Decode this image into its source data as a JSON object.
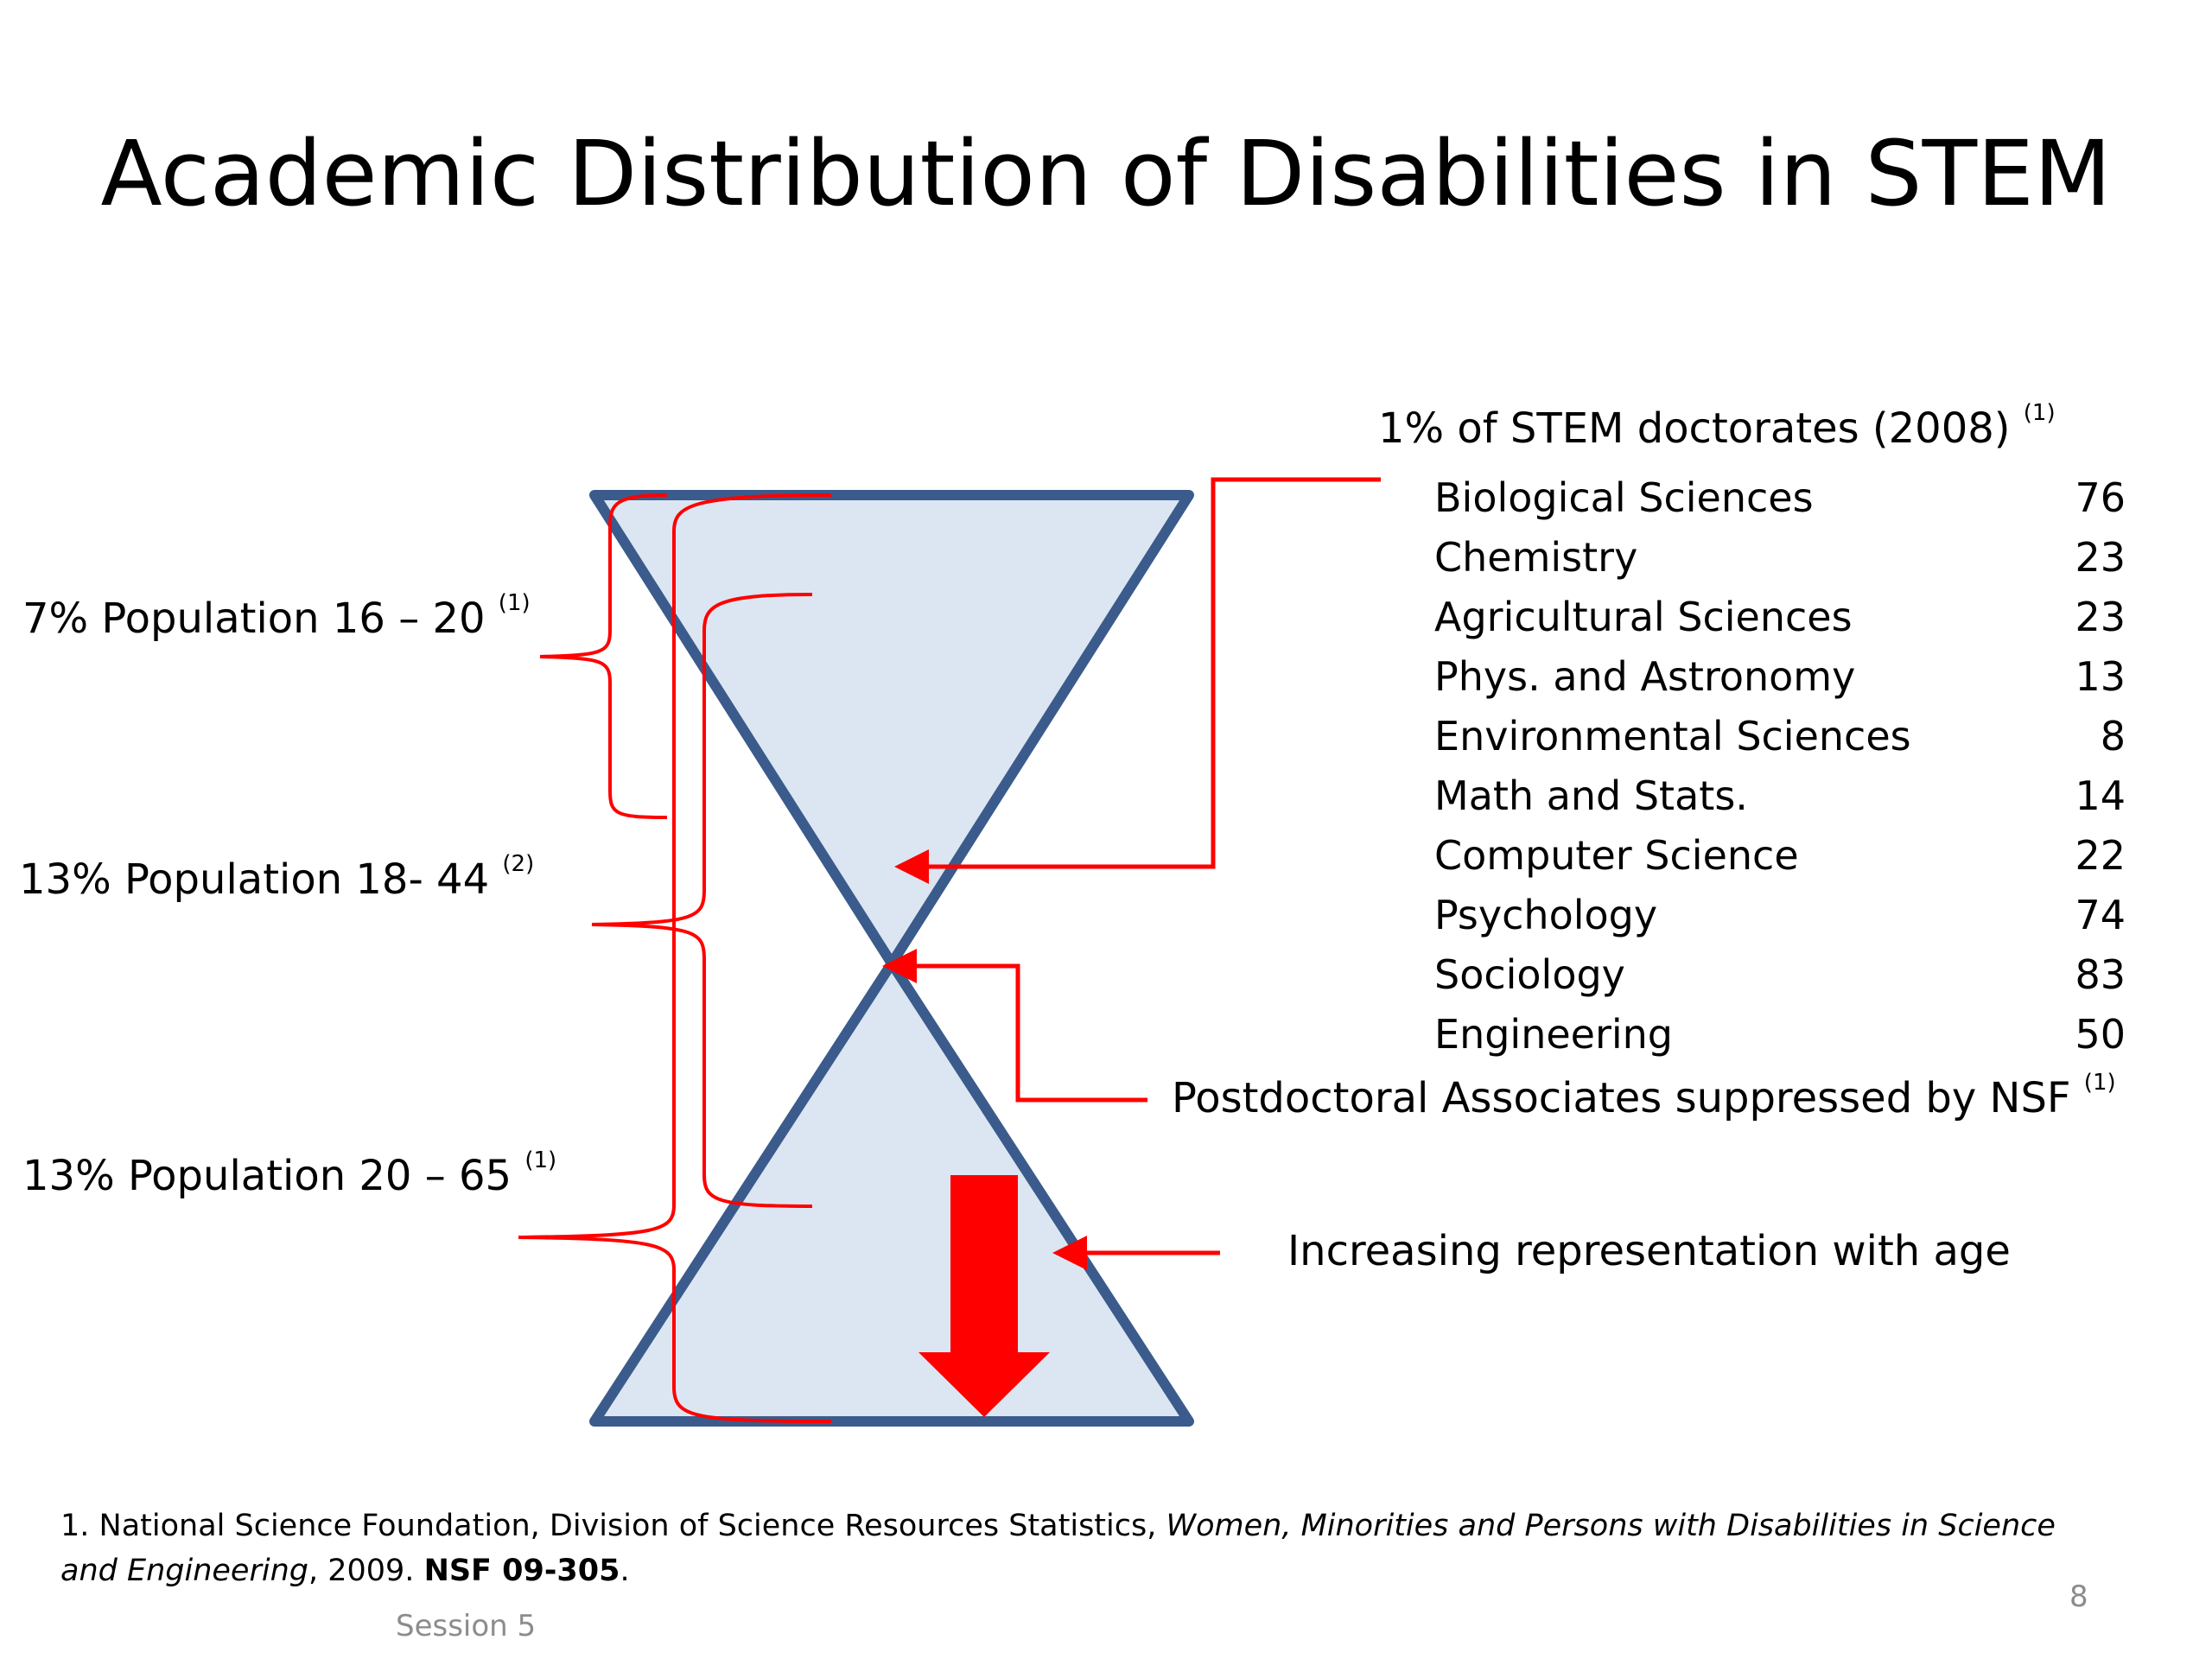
{
  "slide": {
    "title": "Academic Distribution of Disabilities in STEM",
    "labels": {
      "pop_16_20": "7% Population 16 – 20",
      "pop_16_20_ref": "(1)",
      "pop_18_44": "13% Population 18- 44",
      "pop_18_44_ref": "(2)",
      "pop_20_65": "13% Population 20 – 65",
      "pop_20_65_ref": "(1)",
      "doctorates": "1% of STEM doctorates (2008)",
      "doctorates_ref": "(1)",
      "postdoc": "Postdoctoral Associates suppressed by NSF",
      "postdoc_ref": "(1)",
      "increasing": "Increasing representation with age"
    },
    "doctorate_fields": [
      {
        "field": "Biological Sciences",
        "count": "76"
      },
      {
        "field": "Chemistry",
        "count": "23"
      },
      {
        "field": "Agricultural Sciences",
        "count": "23"
      },
      {
        "field": "Phys. and Astronomy",
        "count": "13"
      },
      {
        "field": "Environmental Sciences",
        "count": "8"
      },
      {
        "field": "Math and Stats.",
        "count": "14"
      },
      {
        "field": "Computer Science",
        "count": "22"
      },
      {
        "field": "Psychology",
        "count": "74"
      },
      {
        "field": "Sociology",
        "count": "83"
      },
      {
        "field": "Engineering",
        "count": "50"
      }
    ],
    "footnote": {
      "part1": "1. National Science Foundation, Division of Science Resources Statistics, ",
      "italic": "Women, Minorities and Persons with Disabilities in Science and Engineering",
      "part2": ", 2009. ",
      "bold": "NSF 09-305",
      "part3": "."
    },
    "session": "Session 5",
    "page_number": "8"
  },
  "colors": {
    "hourglass_fill": "#dce6f2",
    "hourglass_stroke": "#3b5b8c",
    "annotation": "#ff0000"
  }
}
